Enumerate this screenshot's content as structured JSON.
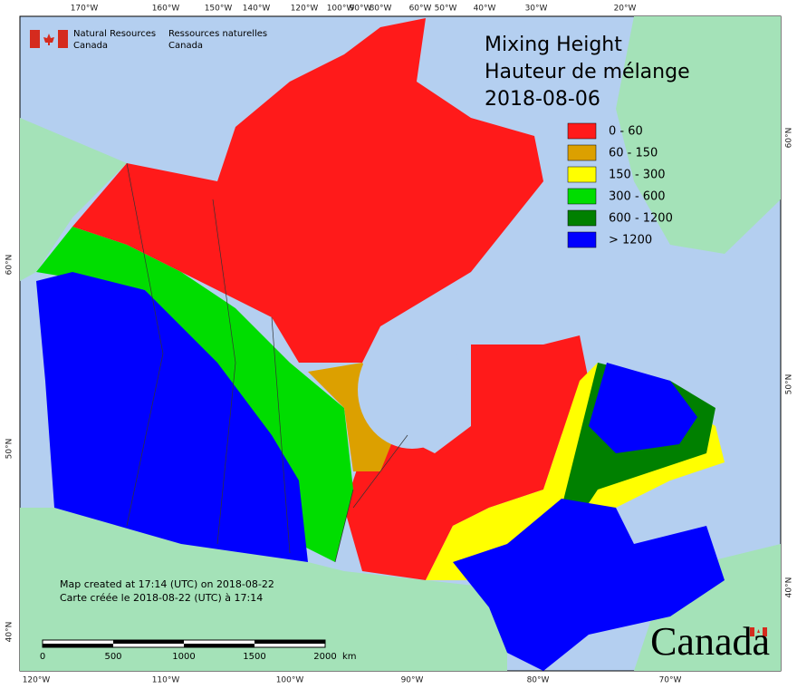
{
  "header": {
    "agency_en": [
      "Natural Resources",
      "Canada"
    ],
    "agency_fr": [
      "Ressources naturelles",
      "Canada"
    ]
  },
  "title": [
    "Mixing Height",
    "Hauteur de mélange",
    "2018-08-06"
  ],
  "legend": [
    {
      "label": "0 - 60",
      "color": "#ff1a1a"
    },
    {
      "label": "60 - 150",
      "color": "#dca000"
    },
    {
      "label": "150 - 300",
      "color": "#ffff00"
    },
    {
      "label": "300 - 600",
      "color": "#00dd00"
    },
    {
      "label": "600 - 1200",
      "color": "#008000"
    },
    {
      "label": "> 1200",
      "color": "#0000ff"
    }
  ],
  "graticule": {
    "top": [
      "170°W",
      "160°W",
      "150°W",
      "140°W",
      "120°W",
      "100°W",
      "90°W",
      "80°W",
      "60°W",
      "50°W",
      "40°W",
      "30°W",
      "20°W"
    ],
    "bottom": [
      "120°W",
      "110°W",
      "100°W",
      "90°W",
      "80°W",
      "70°W"
    ],
    "left": [
      "60°N",
      "50°N",
      "40°N"
    ],
    "right": [
      "60°N",
      "50°N",
      "40°N"
    ]
  },
  "scale_bar": {
    "labels": [
      "0",
      "500",
      "1000",
      "1500",
      "2000"
    ],
    "unit": "km"
  },
  "notes": [
    "Map created at 17:14 (UTC) on 2018-08-22",
    "Carte créée le 2018-08-22 (UTC) à 17:14"
  ],
  "wordmark": "Canada"
}
